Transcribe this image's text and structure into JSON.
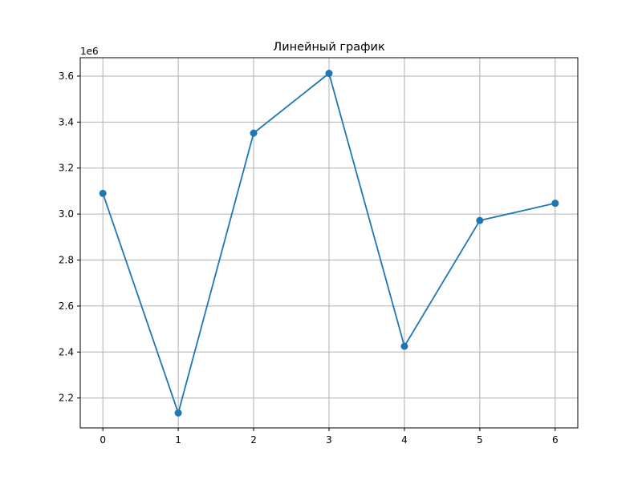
{
  "chart_data": {
    "type": "line",
    "title": "Линейный график",
    "xlabel": "",
    "ylabel": "",
    "y_offset_label": "1e6",
    "y_multiplier": 1000000,
    "x": [
      0,
      1,
      2,
      3,
      4,
      5,
      6
    ],
    "series": [
      {
        "values": [
          3090000,
          2135000,
          3352000,
          3612000,
          2425000,
          2972000,
          3047000
        ],
        "color": "#1f77b4",
        "marker": "circle"
      }
    ],
    "xlim": [
      -0.3,
      6.3
    ],
    "ylim": [
      2070000,
      3680000
    ],
    "xticks": [
      0,
      1,
      2,
      3,
      4,
      5,
      6
    ],
    "xtick_labels": [
      "0",
      "1",
      "2",
      "3",
      "4",
      "5",
      "6"
    ],
    "yticks": [
      2200000,
      2400000,
      2600000,
      2800000,
      3000000,
      3200000,
      3400000,
      3600000
    ],
    "ytick_labels": [
      "2.2",
      "2.4",
      "2.6",
      "2.8",
      "3.0",
      "3.2",
      "3.4",
      "3.6"
    ],
    "grid": true,
    "legend": "none",
    "colors": {
      "line": "#1f77b4",
      "grid": "#b0b0b0",
      "axes": "#000000",
      "background": "#ffffff"
    }
  }
}
